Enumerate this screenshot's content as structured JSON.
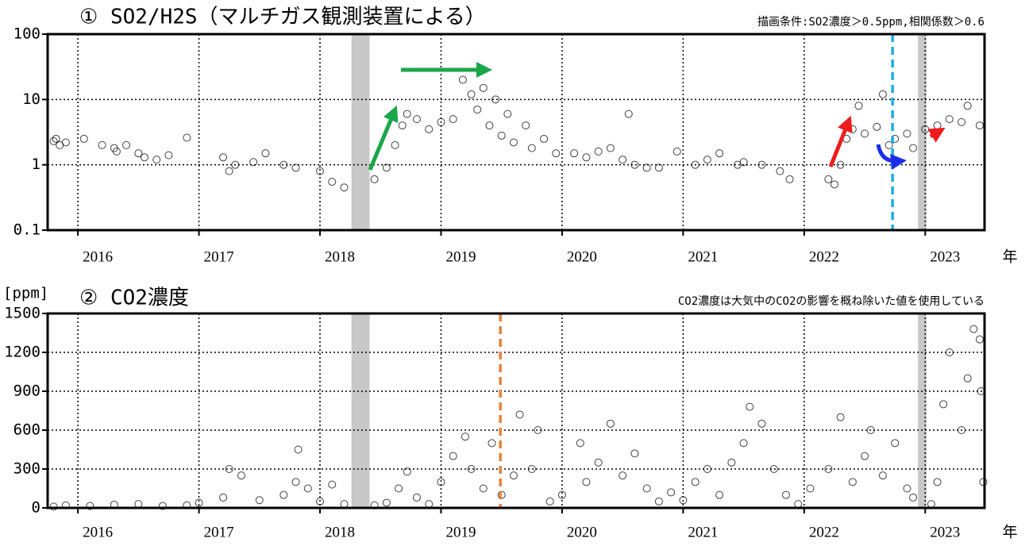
{
  "chart_data": [
    {
      "type": "scatter",
      "title": "① SO2/H2S（マルチガス観測装置による）",
      "note": "描画条件:SO2濃度＞0.5ppm,相関係数＞0.6",
      "x_label": "年",
      "log_scale": true,
      "grid": true,
      "marker_color": "#000000",
      "xlim": [
        2015.75,
        2023.49
      ],
      "xticks": [
        2016,
        2017,
        2018,
        2019,
        2020,
        2021,
        2022,
        2023
      ],
      "ylim": [
        0.1,
        100
      ],
      "yticks": [
        0.1,
        1,
        10,
        100
      ],
      "shaded_periods": [
        {
          "x": [
            2018.26,
            2018.41
          ],
          "color": "#c8c8c8"
        },
        {
          "x": [
            2022.94,
            2023.01
          ],
          "color": "#c8c8c8"
        }
      ],
      "vlines": [
        {
          "x": 2022.73,
          "color": "#1aaee8"
        }
      ],
      "x": [
        2015.8,
        2015.82,
        2015.85,
        2015.9,
        2016.05,
        2016.2,
        2016.3,
        2016.32,
        2016.4,
        2016.5,
        2016.55,
        2016.65,
        2016.75,
        2016.9,
        2017.2,
        2017.25,
        2017.3,
        2017.45,
        2017.55,
        2017.7,
        2017.8,
        2018.0,
        2018.1,
        2018.2,
        2018.45,
        2018.55,
        2018.62,
        2018.68,
        2018.72,
        2018.8,
        2018.9,
        2019.0,
        2019.1,
        2019.18,
        2019.25,
        2019.3,
        2019.35,
        2019.4,
        2019.45,
        2019.5,
        2019.55,
        2019.6,
        2019.7,
        2019.75,
        2019.85,
        2019.95,
        2020.1,
        2020.2,
        2020.3,
        2020.4,
        2020.5,
        2020.55,
        2020.6,
        2020.7,
        2020.8,
        2020.95,
        2021.1,
        2021.2,
        2021.3,
        2021.45,
        2021.5,
        2021.65,
        2021.8,
        2021.88,
        2022.2,
        2022.25,
        2022.3,
        2022.35,
        2022.4,
        2022.45,
        2022.5,
        2022.6,
        2022.65,
        2022.7,
        2022.75,
        2022.85,
        2022.9,
        2023.0,
        2023.1,
        2023.2,
        2023.3,
        2023.35,
        2023.45
      ],
      "values": [
        2.3,
        2.5,
        2.0,
        2.2,
        2.5,
        2.0,
        1.8,
        1.6,
        2.0,
        1.5,
        1.3,
        1.2,
        1.4,
        2.6,
        1.3,
        0.8,
        1.0,
        1.1,
        1.5,
        1.0,
        0.9,
        0.8,
        0.55,
        0.45,
        0.6,
        0.9,
        2.0,
        4,
        6,
        5,
        3.5,
        4.5,
        5,
        20,
        12,
        7,
        15,
        4,
        10,
        2.8,
        6,
        2.2,
        4,
        1.8,
        2.5,
        1.5,
        1.5,
        1.3,
        1.6,
        1.8,
        1.2,
        6,
        1.0,
        0.9,
        0.9,
        1.6,
        1.0,
        1.2,
        1.5,
        1.0,
        1.1,
        1.0,
        0.8,
        0.6,
        0.6,
        0.5,
        1.0,
        2.5,
        3.5,
        8,
        3.0,
        3.8,
        12,
        2.0,
        2.5,
        3.0,
        1.8,
        3.5,
        4,
        5,
        4.5,
        8,
        4
      ]
    },
    {
      "type": "scatter",
      "title": "② CO2濃度",
      "note": "CO2濃度は大気中のCO2の影響を概ね除いた値を使用している",
      "x_label": "年",
      "y_label": "[ppm]",
      "log_scale": false,
      "grid": true,
      "marker_color": "#000000",
      "xlim": [
        2015.75,
        2023.49
      ],
      "xticks": [
        2016,
        2017,
        2018,
        2019,
        2020,
        2021,
        2022,
        2023
      ],
      "ylim": [
        0,
        1500
      ],
      "yticks": [
        0,
        300,
        600,
        900,
        1200,
        1500
      ],
      "shaded_periods": [
        {
          "x": [
            2018.26,
            2018.41
          ],
          "color": "#c8c8c8"
        },
        {
          "x": [
            2022.94,
            2023.01
          ],
          "color": "#c8c8c8"
        }
      ],
      "vlines": [
        {
          "x": 2019.49,
          "color": "#e8823a"
        }
      ],
      "x": [
        2015.8,
        2015.9,
        2016.1,
        2016.3,
        2016.5,
        2016.7,
        2016.9,
        2017.0,
        2017.2,
        2017.25,
        2017.35,
        2017.5,
        2017.7,
        2017.8,
        2017.82,
        2017.9,
        2018.0,
        2018.1,
        2018.2,
        2018.45,
        2018.55,
        2018.65,
        2018.72,
        2018.8,
        2018.9,
        2019.0,
        2019.1,
        2019.2,
        2019.25,
        2019.35,
        2019.42,
        2019.5,
        2019.6,
        2019.65,
        2019.75,
        2019.8,
        2019.9,
        2020.0,
        2020.15,
        2020.2,
        2020.3,
        2020.4,
        2020.5,
        2020.6,
        2020.7,
        2020.8,
        2020.9,
        2021.0,
        2021.1,
        2021.2,
        2021.3,
        2021.4,
        2021.5,
        2021.55,
        2021.65,
        2021.75,
        2021.85,
        2021.95,
        2022.05,
        2022.2,
        2022.3,
        2022.4,
        2022.5,
        2022.55,
        2022.65,
        2022.75,
        2022.85,
        2022.9,
        2023.05,
        2023.1,
        2023.15,
        2023.2,
        2023.3,
        2023.35,
        2023.4,
        2023.45,
        2023.46,
        2023.48
      ],
      "values": [
        10,
        20,
        15,
        25,
        30,
        15,
        20,
        40,
        80,
        300,
        250,
        60,
        100,
        200,
        450,
        150,
        50,
        180,
        30,
        20,
        40,
        150,
        280,
        80,
        30,
        200,
        400,
        550,
        300,
        150,
        500,
        100,
        250,
        720,
        300,
        600,
        50,
        100,
        500,
        200,
        350,
        650,
        250,
        420,
        150,
        50,
        120,
        60,
        200,
        300,
        100,
        350,
        500,
        780,
        650,
        300,
        100,
        30,
        150,
        300,
        700,
        200,
        400,
        600,
        250,
        500,
        150,
        80,
        30,
        200,
        800,
        1200,
        600,
        1000,
        1380,
        1300,
        900,
        200
      ]
    }
  ]
}
